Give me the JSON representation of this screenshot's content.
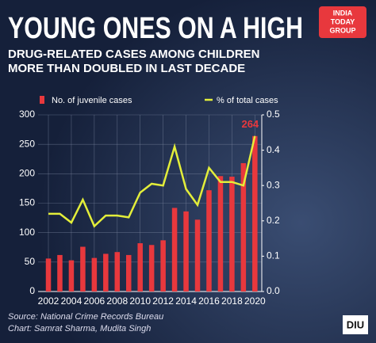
{
  "chart_data": {
    "type": "bar-line",
    "title": "YOUNG ONES ON A HIGH",
    "subtitle": [
      "DRUG-RELATED CASES AMONG CHILDREN",
      "MORE THAN DOUBLED IN LAST DECADE"
    ],
    "x": [
      2002,
      2003,
      2004,
      2005,
      2006,
      2007,
      2008,
      2009,
      2010,
      2011,
      2012,
      2013,
      2014,
      2015,
      2016,
      2017,
      2018,
      2019,
      2020
    ],
    "xlim": [
      2001.1,
      2020.6
    ],
    "xticks": [
      2002,
      2004,
      2006,
      2008,
      2010,
      2012,
      2014,
      2016,
      2018,
      2020
    ],
    "series": [
      {
        "name": "No. of juvenile cases",
        "color": "#e8383d",
        "type": "bar",
        "values": [
          56,
          62,
          53,
          76,
          57,
          64,
          67,
          62,
          82,
          79,
          87,
          142,
          136,
          122,
          172,
          196,
          195,
          218,
          264
        ]
      },
      {
        "name": "% of total  cases",
        "color": "#e3ee3a",
        "type": "line",
        "axis": "y2",
        "values": [
          0.22,
          0.22,
          0.195,
          0.26,
          0.185,
          0.215,
          0.215,
          0.21,
          0.28,
          0.305,
          0.3,
          0.41,
          0.29,
          0.245,
          0.35,
          0.31,
          0.31,
          0.3,
          0.44
        ]
      }
    ],
    "ylim": [
      0,
      300
    ],
    "yticks": [
      0,
      50,
      100,
      150,
      200,
      250,
      300
    ],
    "y2lim": [
      0,
      0.5
    ],
    "y2ticks": [
      {
        "value": 0,
        "label": "0.0"
      },
      0.1,
      0.2,
      0.3,
      0.4,
      0.5
    ],
    "grid": true,
    "source": [
      "Source: National Crime Records Bureau",
      "Chart: Samrat Sharma, Mudita Singh"
    ],
    "branding": {
      "logo": [
        "INDIA",
        "TODAY",
        "GROUP"
      ],
      "mark": "DIU"
    }
  }
}
